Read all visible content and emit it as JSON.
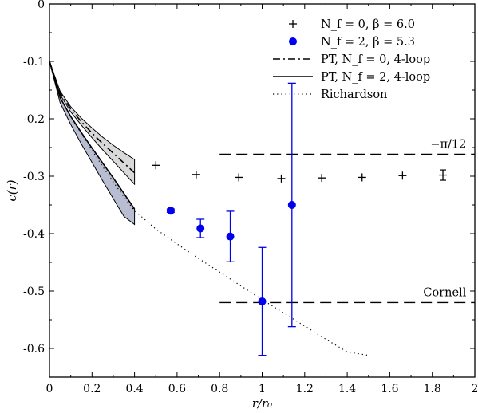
{
  "chart_data": {
    "type": "scatter",
    "xlabel": "r/r₀",
    "ylabel": "c(r)",
    "xlim": [
      0,
      2
    ],
    "ylim": [
      -0.65,
      0
    ],
    "xticks": [
      "0",
      "0.2",
      "0.4",
      "0.6",
      "0.8",
      "1",
      "1.2",
      "1.4",
      "1.6",
      "1.8",
      "2"
    ],
    "yticks": [
      "0",
      "-0.1",
      "-0.2",
      "-0.3",
      "-0.4",
      "-0.5",
      "-0.6"
    ],
    "grid": false,
    "legend_position": "top-right",
    "series": [
      {
        "name": "N_f = 0, β = 6.0",
        "marker": "plus",
        "color": "#000000",
        "points": [
          {
            "x": 0.5,
            "y": -0.281,
            "err": 0.002
          },
          {
            "x": 0.69,
            "y": -0.297,
            "err": 0.003
          },
          {
            "x": 0.89,
            "y": -0.302,
            "err": 0.003
          },
          {
            "x": 1.09,
            "y": -0.304,
            "err": 0.003
          },
          {
            "x": 1.28,
            "y": -0.303,
            "err": 0.004
          },
          {
            "x": 1.47,
            "y": -0.302,
            "err": 0.004
          },
          {
            "x": 1.66,
            "y": -0.299,
            "err": 0.005
          },
          {
            "x": 1.85,
            "y": -0.298,
            "err": 0.009
          }
        ]
      },
      {
        "name": "N_f = 2, β = 5.3",
        "marker": "circle",
        "color": "#0000ee",
        "points": [
          {
            "x": 0.57,
            "y": -0.36,
            "err": 0.003
          },
          {
            "x": 0.71,
            "y": -0.391,
            "err": 0.016
          },
          {
            "x": 0.85,
            "y": -0.405,
            "err": 0.044
          },
          {
            "x": 1.0,
            "y": -0.518,
            "err": 0.094
          },
          {
            "x": 1.14,
            "y": -0.35,
            "err": 0.212
          }
        ]
      },
      {
        "name": "PT, N_f = 0, 4-loop",
        "style": "dash-dot",
        "color": "#000000",
        "band_color": "#d9d9d9",
        "x": [
          0.0,
          0.05,
          0.1,
          0.15,
          0.2,
          0.25,
          0.3,
          0.35,
          0.4
        ],
        "y": [
          -0.1,
          -0.155,
          -0.183,
          -0.205,
          -0.225,
          -0.243,
          -0.26,
          -0.277,
          -0.294
        ],
        "band_upper": [
          -0.1,
          -0.152,
          -0.179,
          -0.199,
          -0.216,
          -0.232,
          -0.246,
          -0.259,
          -0.271
        ],
        "band_lower": [
          -0.1,
          -0.158,
          -0.188,
          -0.211,
          -0.233,
          -0.254,
          -0.274,
          -0.294,
          -0.314
        ]
      },
      {
        "name": "PT, N_f = 2, 4-loop",
        "style": "solid",
        "color": "#000000",
        "band_color": "#b9bdd2",
        "x": [
          0.0,
          0.05,
          0.1,
          0.15,
          0.2,
          0.25,
          0.3,
          0.35,
          0.4
        ],
        "y": [
          -0.1,
          -0.163,
          -0.196,
          -0.224,
          -0.251,
          -0.277,
          -0.303,
          -0.33,
          -0.357
        ],
        "band_upper": [
          -0.1,
          -0.163,
          -0.196,
          -0.224,
          -0.251,
          -0.277,
          -0.303,
          -0.33,
          -0.357
        ],
        "band_lower": [
          -0.1,
          -0.172,
          -0.21,
          -0.244,
          -0.276,
          -0.308,
          -0.339,
          -0.37,
          -0.384
        ]
      },
      {
        "name": "Richardson",
        "style": "dotted",
        "color": "#000000",
        "x": [
          0.0,
          0.05,
          0.1,
          0.15,
          0.2,
          0.25,
          0.3,
          0.35,
          0.4,
          0.5,
          0.6,
          0.7,
          0.8,
          0.9,
          1.0,
          1.1,
          1.2,
          1.3,
          1.4,
          1.5
        ],
        "y": [
          -0.1,
          -0.163,
          -0.196,
          -0.226,
          -0.255,
          -0.283,
          -0.31,
          -0.336,
          -0.36,
          -0.392,
          -0.418,
          -0.443,
          -0.467,
          -0.491,
          -0.515,
          -0.538,
          -0.561,
          -0.584,
          -0.606,
          -0.612
        ]
      }
    ],
    "annotations": [
      {
        "label": "−π/12",
        "y": -0.2618,
        "x_range": [
          0.8,
          2.0
        ],
        "style": "dashed"
      },
      {
        "label": "Cornell",
        "y": -0.52,
        "x_range": [
          0.8,
          2.0
        ],
        "style": "dashed"
      }
    ]
  }
}
